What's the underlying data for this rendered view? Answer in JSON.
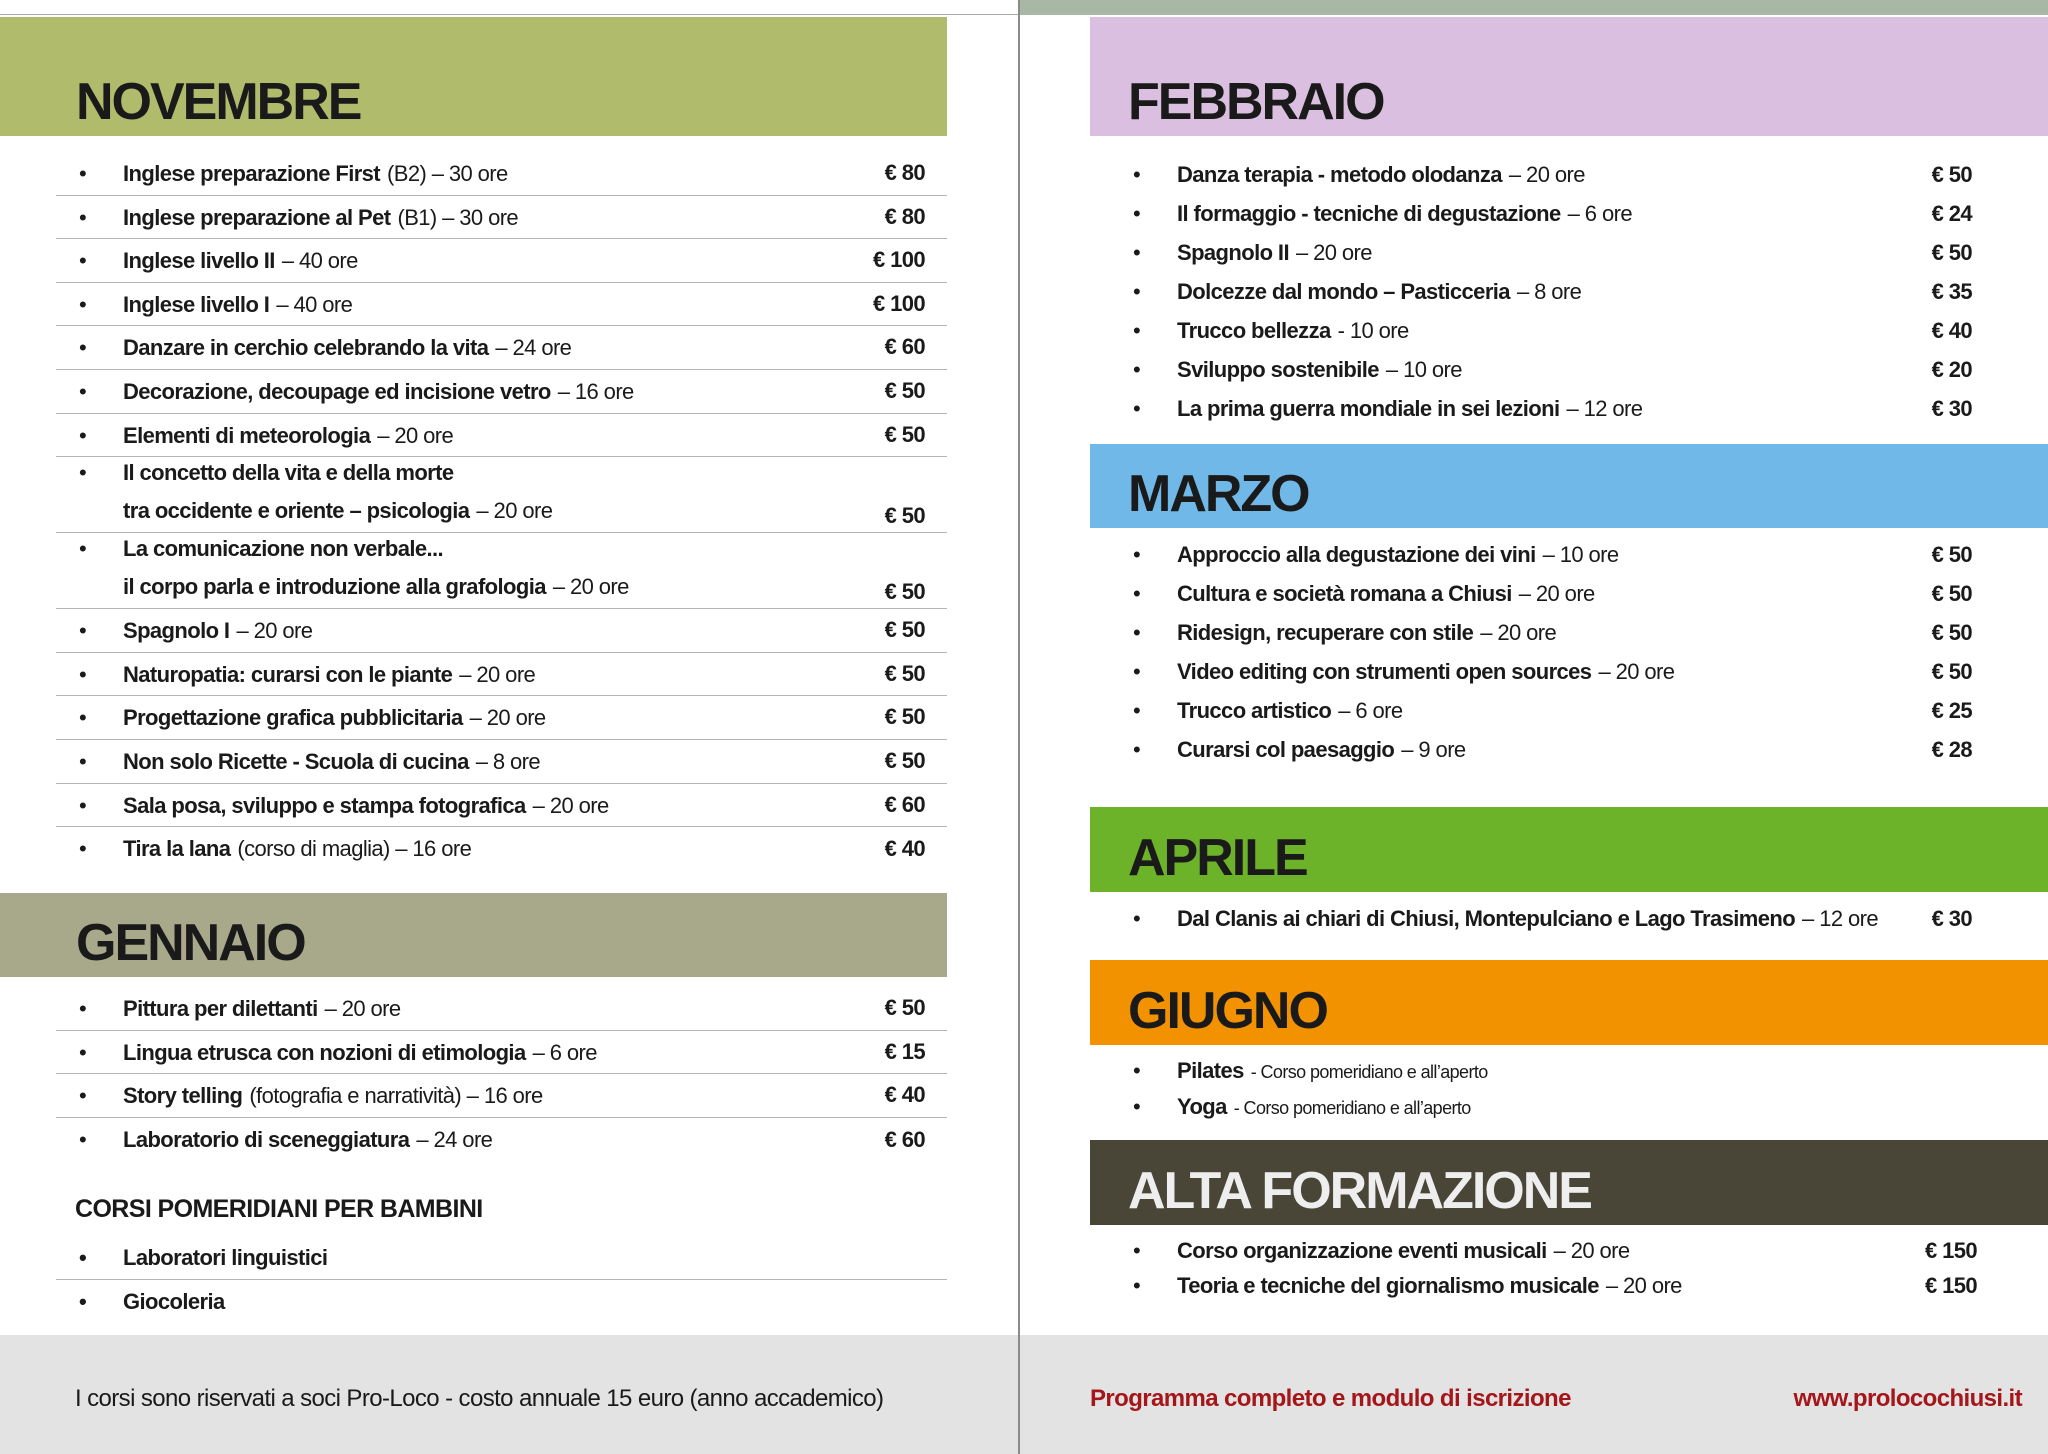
{
  "left": [
    {
      "title": "NOVEMBRE",
      "items": [
        {
          "lines": [
            [
              "Inglese preparazione First",
              "(B2) – 30 ore"
            ]
          ],
          "price": "€ 80"
        },
        {
          "lines": [
            [
              "Inglese preparazione al Pet",
              "(B1) – 30 ore"
            ]
          ],
          "price": "€ 80"
        },
        {
          "lines": [
            [
              "Inglese livello II",
              "– 40 ore"
            ]
          ],
          "price": "€ 100"
        },
        {
          "lines": [
            [
              "Inglese livello I",
              "– 40 ore"
            ]
          ],
          "price": "€ 100"
        },
        {
          "lines": [
            [
              "Danzare in cerchio celebrando la vita",
              "– 24 ore"
            ]
          ],
          "price": "€ 60"
        },
        {
          "lines": [
            [
              "Decorazione, decoupage ed incisione vetro",
              "– 16 ore"
            ]
          ],
          "price": "€ 50"
        },
        {
          "lines": [
            [
              "Elementi di meteorologia",
              "– 20 ore"
            ]
          ],
          "price": "€ 50"
        },
        {
          "lines": [
            [
              "Il concetto della vita e della morte"
            ],
            [
              "tra occidente e oriente – psicologia",
              "– 20 ore"
            ]
          ],
          "price": "€ 50"
        },
        {
          "lines": [
            [
              "La comunicazione non verbale..."
            ],
            [
              "il corpo parla e introduzione alla grafologia",
              "– 20 ore"
            ]
          ],
          "price": "€ 50"
        },
        {
          "lines": [
            [
              "Spagnolo I",
              "– 20 ore"
            ]
          ],
          "price": "€ 50"
        },
        {
          "lines": [
            [
              "Naturopatia: curarsi con le piante",
              "– 20 ore"
            ]
          ],
          "price": "€ 50"
        },
        {
          "lines": [
            [
              "Progettazione grafica pubblicitaria",
              "– 20 ore"
            ]
          ],
          "price": "€ 50"
        },
        {
          "lines": [
            [
              "Non solo Ricette - Scuola di cucina",
              "– 8 ore"
            ]
          ],
          "price": "€ 50"
        },
        {
          "lines": [
            [
              "Sala posa, sviluppo e stampa fotografica",
              "– 20 ore"
            ]
          ],
          "price": "€ 60"
        },
        {
          "lines": [
            [
              "Tira la lana",
              "(corso di maglia) – 16 ore"
            ]
          ],
          "price": "€ 40"
        }
      ]
    },
    {
      "title": "GENNAIO",
      "items": [
        {
          "lines": [
            [
              "Pittura per dilettanti",
              "– 20 ore"
            ]
          ],
          "price": "€ 50"
        },
        {
          "lines": [
            [
              "Lingua etrusca con nozioni di etimologia",
              "– 6 ore"
            ]
          ],
          "price": "€ 15"
        },
        {
          "lines": [
            [
              "Story telling",
              "(fotografia e narratività) – 16 ore"
            ]
          ],
          "price": "€ 40"
        },
        {
          "lines": [
            [
              "Laboratorio di sceneggiatura",
              "– 24 ore"
            ]
          ],
          "price": "€ 60"
        }
      ]
    }
  ],
  "kids": {
    "title": "CORSI POMERIDIANI PER BAMBINI",
    "items": [
      "Laboratori linguistici",
      "Giocoleria"
    ]
  },
  "right": [
    {
      "title": "FEBBRAIO",
      "items": [
        {
          "lines": [
            [
              "Danza terapia - metodo olodanza",
              "– 20 ore"
            ]
          ],
          "price": "€ 50"
        },
        {
          "lines": [
            [
              "Il formaggio - tecniche di degustazione",
              "– 6 ore"
            ]
          ],
          "price": "€ 24"
        },
        {
          "lines": [
            [
              "Spagnolo II",
              "– 20 ore"
            ]
          ],
          "price": "€ 50"
        },
        {
          "lines": [
            [
              "Dolcezze dal mondo – Pasticceria",
              "– 8 ore"
            ]
          ],
          "price": "€ 35"
        },
        {
          "lines": [
            [
              "Trucco bellezza",
              "- 10 ore"
            ]
          ],
          "price": "€ 40"
        },
        {
          "lines": [
            [
              "Sviluppo sostenibile",
              "– 10 ore"
            ]
          ],
          "price": "€ 20"
        },
        {
          "lines": [
            [
              "La prima guerra mondiale in sei lezioni",
              "– 12 ore"
            ]
          ],
          "price": "€ 30"
        }
      ]
    },
    {
      "title": "MARZO",
      "items": [
        {
          "lines": [
            [
              "Approccio alla degustazione dei vini",
              "– 10 ore"
            ]
          ],
          "price": "€ 50"
        },
        {
          "lines": [
            [
              "Cultura e società romana a Chiusi",
              "– 20 ore"
            ]
          ],
          "price": "€ 50"
        },
        {
          "lines": [
            [
              "Ridesign, recuperare con stile",
              "– 20 ore"
            ]
          ],
          "price": "€ 50"
        },
        {
          "lines": [
            [
              "Video editing con strumenti open sources",
              "– 20 ore"
            ]
          ],
          "price": "€ 50"
        },
        {
          "lines": [
            [
              "Trucco artistico",
              "– 6 ore"
            ]
          ],
          "price": "€ 25"
        },
        {
          "lines": [
            [
              "Curarsi col paesaggio",
              "– 9 ore"
            ]
          ],
          "price": "€ 28"
        }
      ]
    },
    {
      "title": "APRILE",
      "items": [
        {
          "lines": [
            [
              "Dal Clanis ai chiari di Chiusi, Montepulciano e Lago Trasimeno",
              "– 12 ore"
            ]
          ],
          "price": "€ 30"
        }
      ]
    },
    {
      "title": "GIUGNO",
      "items": [
        {
          "lines": [
            [
              "Pilates",
              "- Corso pomeridiano e all’aperto"
            ]
          ]
        },
        {
          "lines": [
            [
              "Yoga",
              "- Corso pomeridiano e all’aperto"
            ]
          ]
        }
      ]
    },
    {
      "title": "ALTA FORMAZIONE",
      "items": [
        {
          "lines": [
            [
              "Corso organizzazione eventi musicali",
              "– 20 ore"
            ]
          ],
          "price": "€ 150"
        },
        {
          "lines": [
            [
              "Teoria e tecniche del giornalismo musicale",
              "– 20 ore"
            ]
          ],
          "price": "€ 150"
        }
      ]
    }
  ],
  "footer": {
    "note": "I corsi sono riservati a soci Pro-Loco - costo annuale 15 euro (anno accademico)",
    "link_text": "Programma completo e modulo di iscrizione",
    "url": "www.prolocochiusi.it"
  }
}
